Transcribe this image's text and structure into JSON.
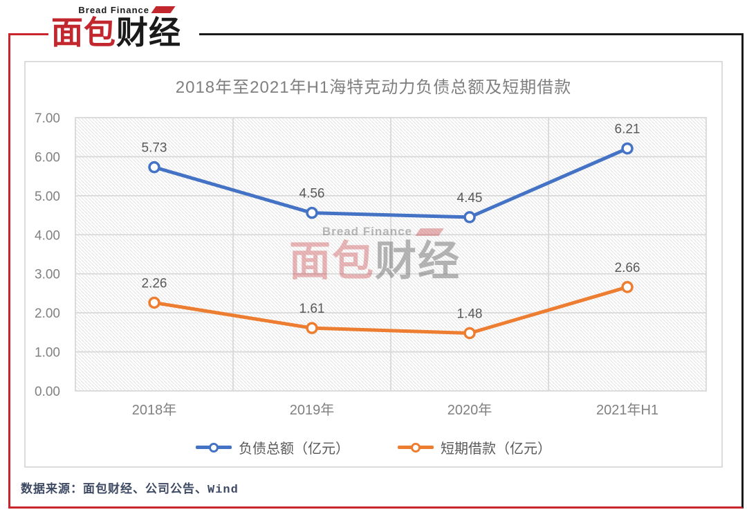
{
  "logo": {
    "subtitle": "Bread Finance",
    "brand_red": "面包",
    "brand_black": "财经"
  },
  "watermark": {
    "subtitle": "Bread Finance",
    "brand_red": "面包",
    "brand_black": "财经"
  },
  "chart_data": {
    "type": "line",
    "title": "2018年至2021年H1海特克动力负债总额及短期借款",
    "categories": [
      "2018年",
      "2019年",
      "2020年",
      "2021年H1"
    ],
    "series": [
      {
        "name": "负债总额（亿元）",
        "color": "#4472C4",
        "values": [
          5.73,
          4.56,
          4.45,
          6.21
        ]
      },
      {
        "name": "短期借款（亿元）",
        "color": "#ED7D31",
        "values": [
          2.26,
          1.61,
          1.48,
          2.66
        ]
      }
    ],
    "ylim": [
      0,
      7
    ],
    "ytick_step": 1,
    "ytick_decimals": 2,
    "grid": true,
    "legend_position": "bottom",
    "plot_background": "diagonal-hatch"
  },
  "source_note": "数据来源：面包财经、公司公告、Wind",
  "colors": {
    "brand_red": "#C1272D",
    "frame_red": "#C9252D",
    "frame_black": "#1A1A1A",
    "grid": "#D9D9D9",
    "axis_text": "#808080",
    "title_text": "#7F7F7F",
    "data_label_text": "#595959",
    "legend_text": "#595959",
    "source_text": "#3E4A63"
  }
}
